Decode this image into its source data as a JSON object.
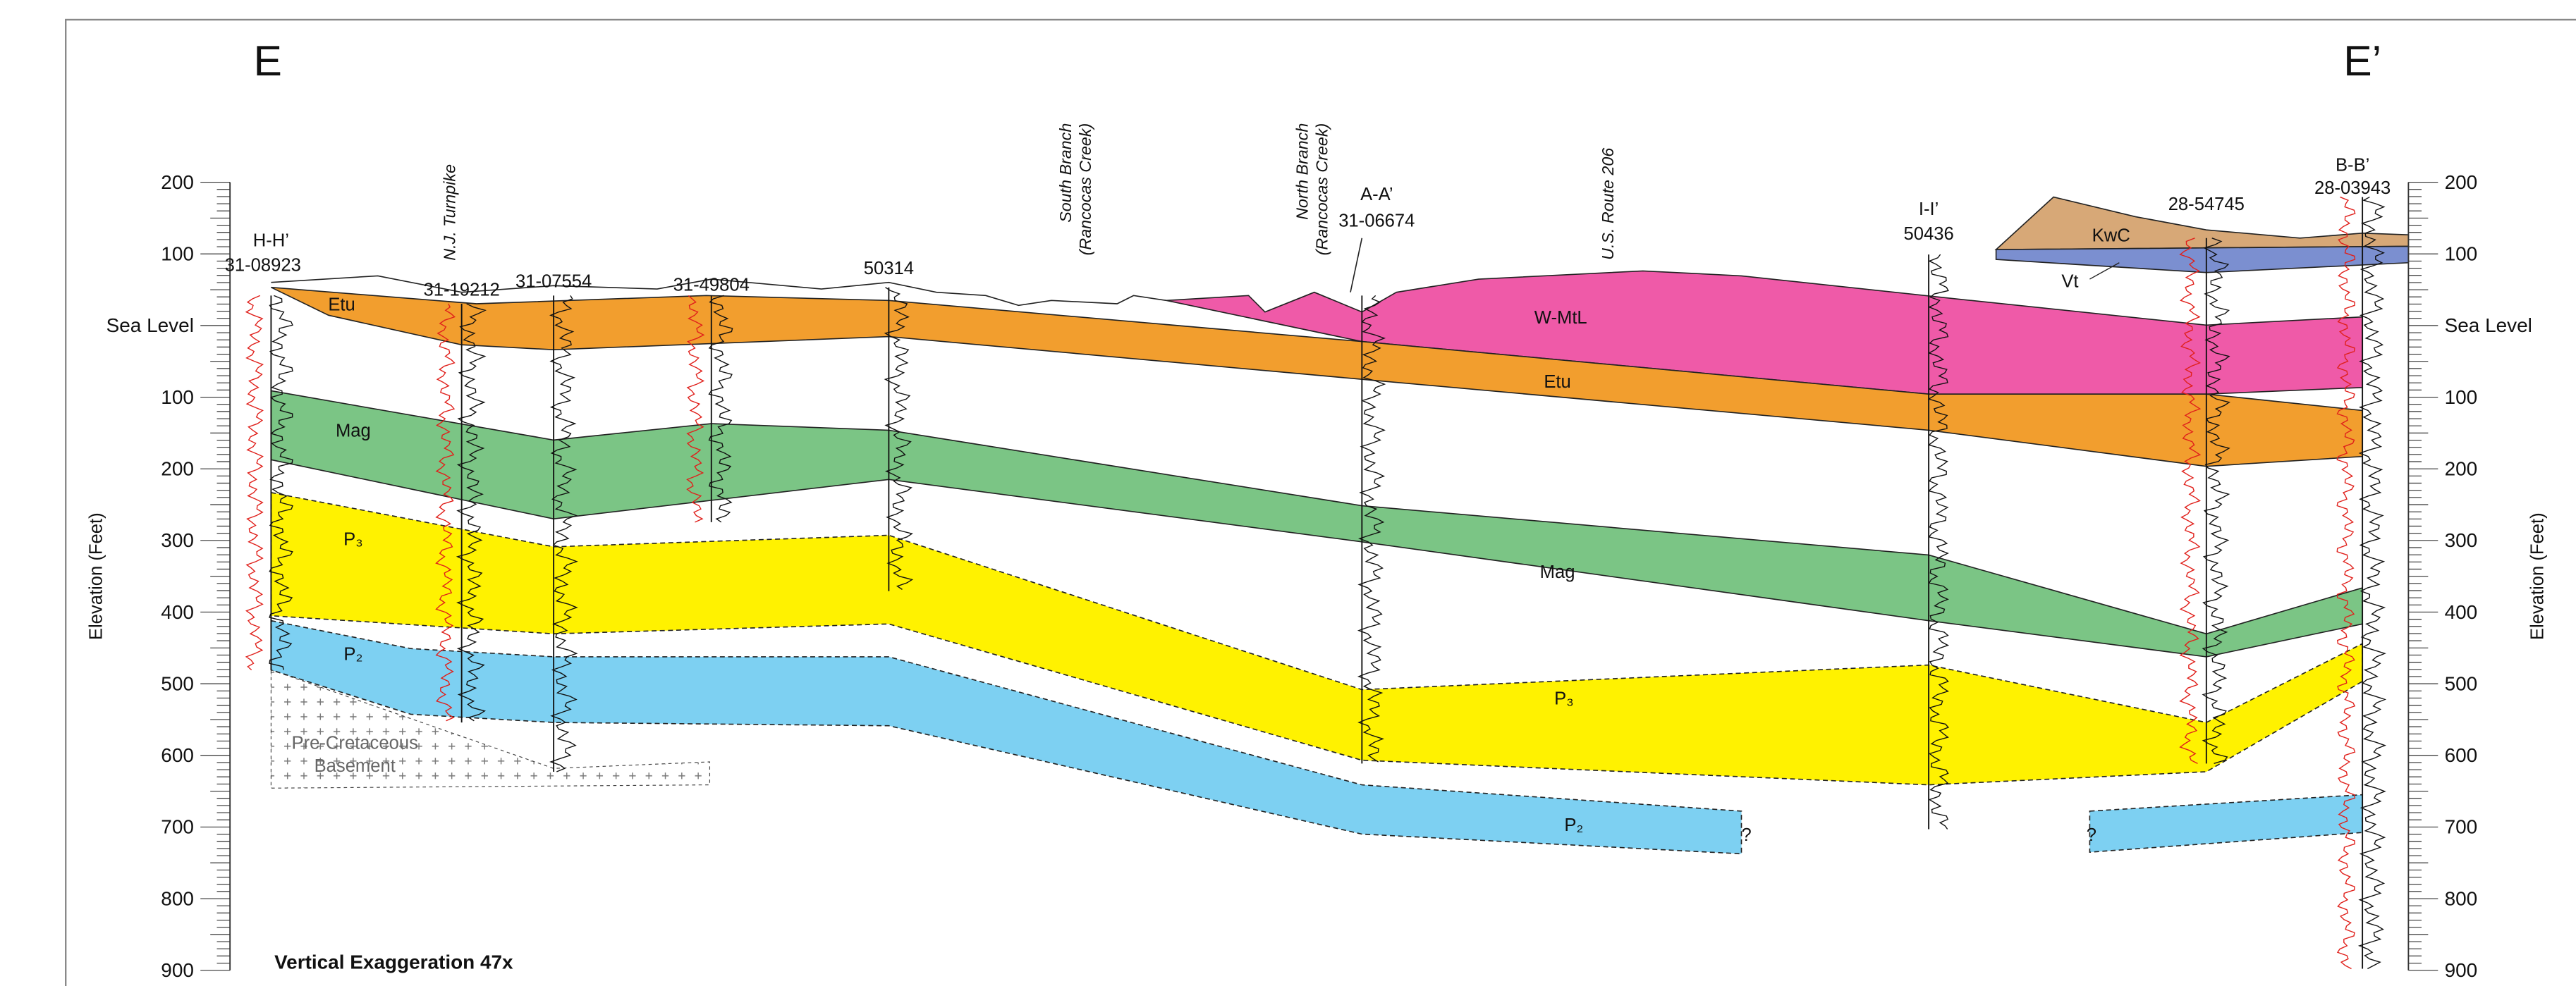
{
  "header": {
    "left_label": "E",
    "right_label": "E’"
  },
  "elevation_axis": {
    "label": "Elevation (Feet)",
    "ticks": [
      "200",
      "100",
      "Sea Level",
      "100",
      "200",
      "300",
      "400",
      "500",
      "600",
      "700",
      "800",
      "900"
    ]
  },
  "wells": [
    {
      "section": "H-H’",
      "id": "31-08923"
    },
    {
      "id": "31-19212"
    },
    {
      "id": "31-07554"
    },
    {
      "id": "31-49804"
    },
    {
      "id": "50314"
    },
    {
      "section": "A-A’",
      "id": "31-06674"
    },
    {
      "section": "I-I’",
      "id": "50436"
    },
    {
      "id": "28-54745"
    },
    {
      "section": "B-B’",
      "id": "28-03943"
    }
  ],
  "landmarks": [
    {
      "lines": [
        "N.J. Turnpike"
      ]
    },
    {
      "lines": [
        "South Branch",
        "(Rancocas Creek)"
      ]
    },
    {
      "lines": [
        "North Branch",
        "(Rancocas Creek)"
      ]
    },
    {
      "lines": [
        "U.S. Route 206"
      ]
    }
  ],
  "units": {
    "etu": "Etu",
    "wmtl": "W-MtL",
    "mag": "Mag",
    "p3": "P₃",
    "p2": "P₂",
    "kwc": "KwC",
    "vt": "Vt",
    "basement": [
      "Pre-Cretaceous",
      "Basement"
    ],
    "unknown": "?"
  },
  "note": "Vertical Exaggeration 47x"
}
